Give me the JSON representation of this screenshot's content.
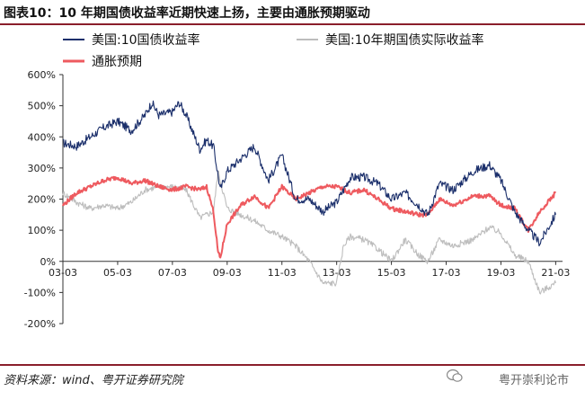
{
  "figure": {
    "title": "图表10：10 年期国债收益率近期快速上扬，主要由通胀预期驱动",
    "source": "资料来源：wind、粤开证券研究院",
    "watermark": "粤开崇利论市"
  },
  "colors": {
    "nominal": "#1b2f6b",
    "real": "#bdbdbd",
    "inflation": "#ee5a5f"
  },
  "chart_data": {
    "type": "line",
    "x_type": "date",
    "x_ticks": [
      "03-03",
      "05-03",
      "07-03",
      "09-03",
      "11-03",
      "13-03",
      "15-03",
      "17-03",
      "19-03",
      "21-03"
    ],
    "ylim": [
      -200,
      600
    ],
    "y_ticks": [
      "600%",
      "500%",
      "400%",
      "300%",
      "200%",
      "100%",
      "0%",
      "-100%",
      "-200%"
    ],
    "y_tick_values": [
      600,
      500,
      400,
      300,
      200,
      100,
      0,
      -100,
      -200
    ],
    "series": [
      {
        "name": "美国:10国债收益率",
        "color": "#1b2f6b",
        "x": [
          "2003-03",
          "2003-09",
          "2004-03",
          "2004-09",
          "2005-03",
          "2005-09",
          "2006-03",
          "2006-06",
          "2006-09",
          "2007-03",
          "2007-06",
          "2007-09",
          "2008-03",
          "2008-06",
          "2008-09",
          "2008-12",
          "2009-03",
          "2009-09",
          "2010-03",
          "2010-09",
          "2011-03",
          "2011-09",
          "2012-03",
          "2012-09",
          "2013-03",
          "2013-09",
          "2014-03",
          "2014-09",
          "2015-03",
          "2015-09",
          "2016-03",
          "2016-07",
          "2016-12",
          "2017-06",
          "2018-03",
          "2018-10",
          "2019-03",
          "2019-09",
          "2020-03",
          "2020-08",
          "2021-03"
        ],
        "values": [
          380,
          370,
          400,
          430,
          450,
          420,
          470,
          510,
          470,
          480,
          510,
          470,
          360,
          390,
          370,
          230,
          290,
          330,
          370,
          260,
          340,
          200,
          200,
          160,
          190,
          270,
          270,
          250,
          200,
          220,
          180,
          150,
          250,
          230,
          290,
          310,
          260,
          160,
          100,
          60,
          150
        ]
      },
      {
        "name": "美国:10年期国债实际收益率",
        "color": "#bdbdbd",
        "x": [
          "2003-03",
          "2003-09",
          "2004-03",
          "2004-09",
          "2005-03",
          "2005-09",
          "2006-03",
          "2006-09",
          "2007-03",
          "2007-09",
          "2008-03",
          "2008-06",
          "2008-09",
          "2008-11",
          "2009-03",
          "2009-09",
          "2010-03",
          "2010-09",
          "2011-03",
          "2011-09",
          "2012-03",
          "2012-09",
          "2013-03",
          "2013-06",
          "2013-09",
          "2014-03",
          "2014-09",
          "2015-03",
          "2015-09",
          "2016-03",
          "2016-07",
          "2016-12",
          "2017-06",
          "2018-03",
          "2018-10",
          "2019-03",
          "2019-09",
          "2020-03",
          "2020-08",
          "2021-03"
        ],
        "values": [
          220,
          190,
          170,
          180,
          170,
          190,
          230,
          240,
          240,
          230,
          140,
          150,
          160,
          290,
          170,
          150,
          130,
          100,
          80,
          50,
          0,
          -70,
          -70,
          50,
          80,
          70,
          40,
          0,
          70,
          20,
          0,
          70,
          50,
          70,
          110,
          90,
          20,
          0,
          -100,
          -70
        ]
      },
      {
        "name": "通胀预期",
        "color": "#ee5a5f",
        "x": [
          "2003-03",
          "2003-09",
          "2004-03",
          "2004-09",
          "2005-03",
          "2005-09",
          "2006-03",
          "2006-09",
          "2007-03",
          "2007-09",
          "2008-03",
          "2008-06",
          "2008-09",
          "2008-11",
          "2008-12",
          "2009-03",
          "2009-09",
          "2010-03",
          "2010-09",
          "2011-03",
          "2011-09",
          "2012-03",
          "2012-09",
          "2013-03",
          "2013-09",
          "2014-03",
          "2014-09",
          "2015-03",
          "2015-09",
          "2016-03",
          "2016-07",
          "2016-12",
          "2017-06",
          "2018-03",
          "2018-10",
          "2019-03",
          "2019-09",
          "2020-03",
          "2020-08",
          "2021-03"
        ],
        "values": [
          180,
          220,
          240,
          260,
          270,
          250,
          260,
          240,
          230,
          240,
          230,
          240,
          160,
          30,
          10,
          120,
          180,
          210,
          170,
          240,
          200,
          220,
          240,
          240,
          220,
          230,
          200,
          170,
          160,
          150,
          150,
          200,
          180,
          210,
          210,
          180,
          170,
          100,
          160,
          220
        ]
      }
    ]
  }
}
